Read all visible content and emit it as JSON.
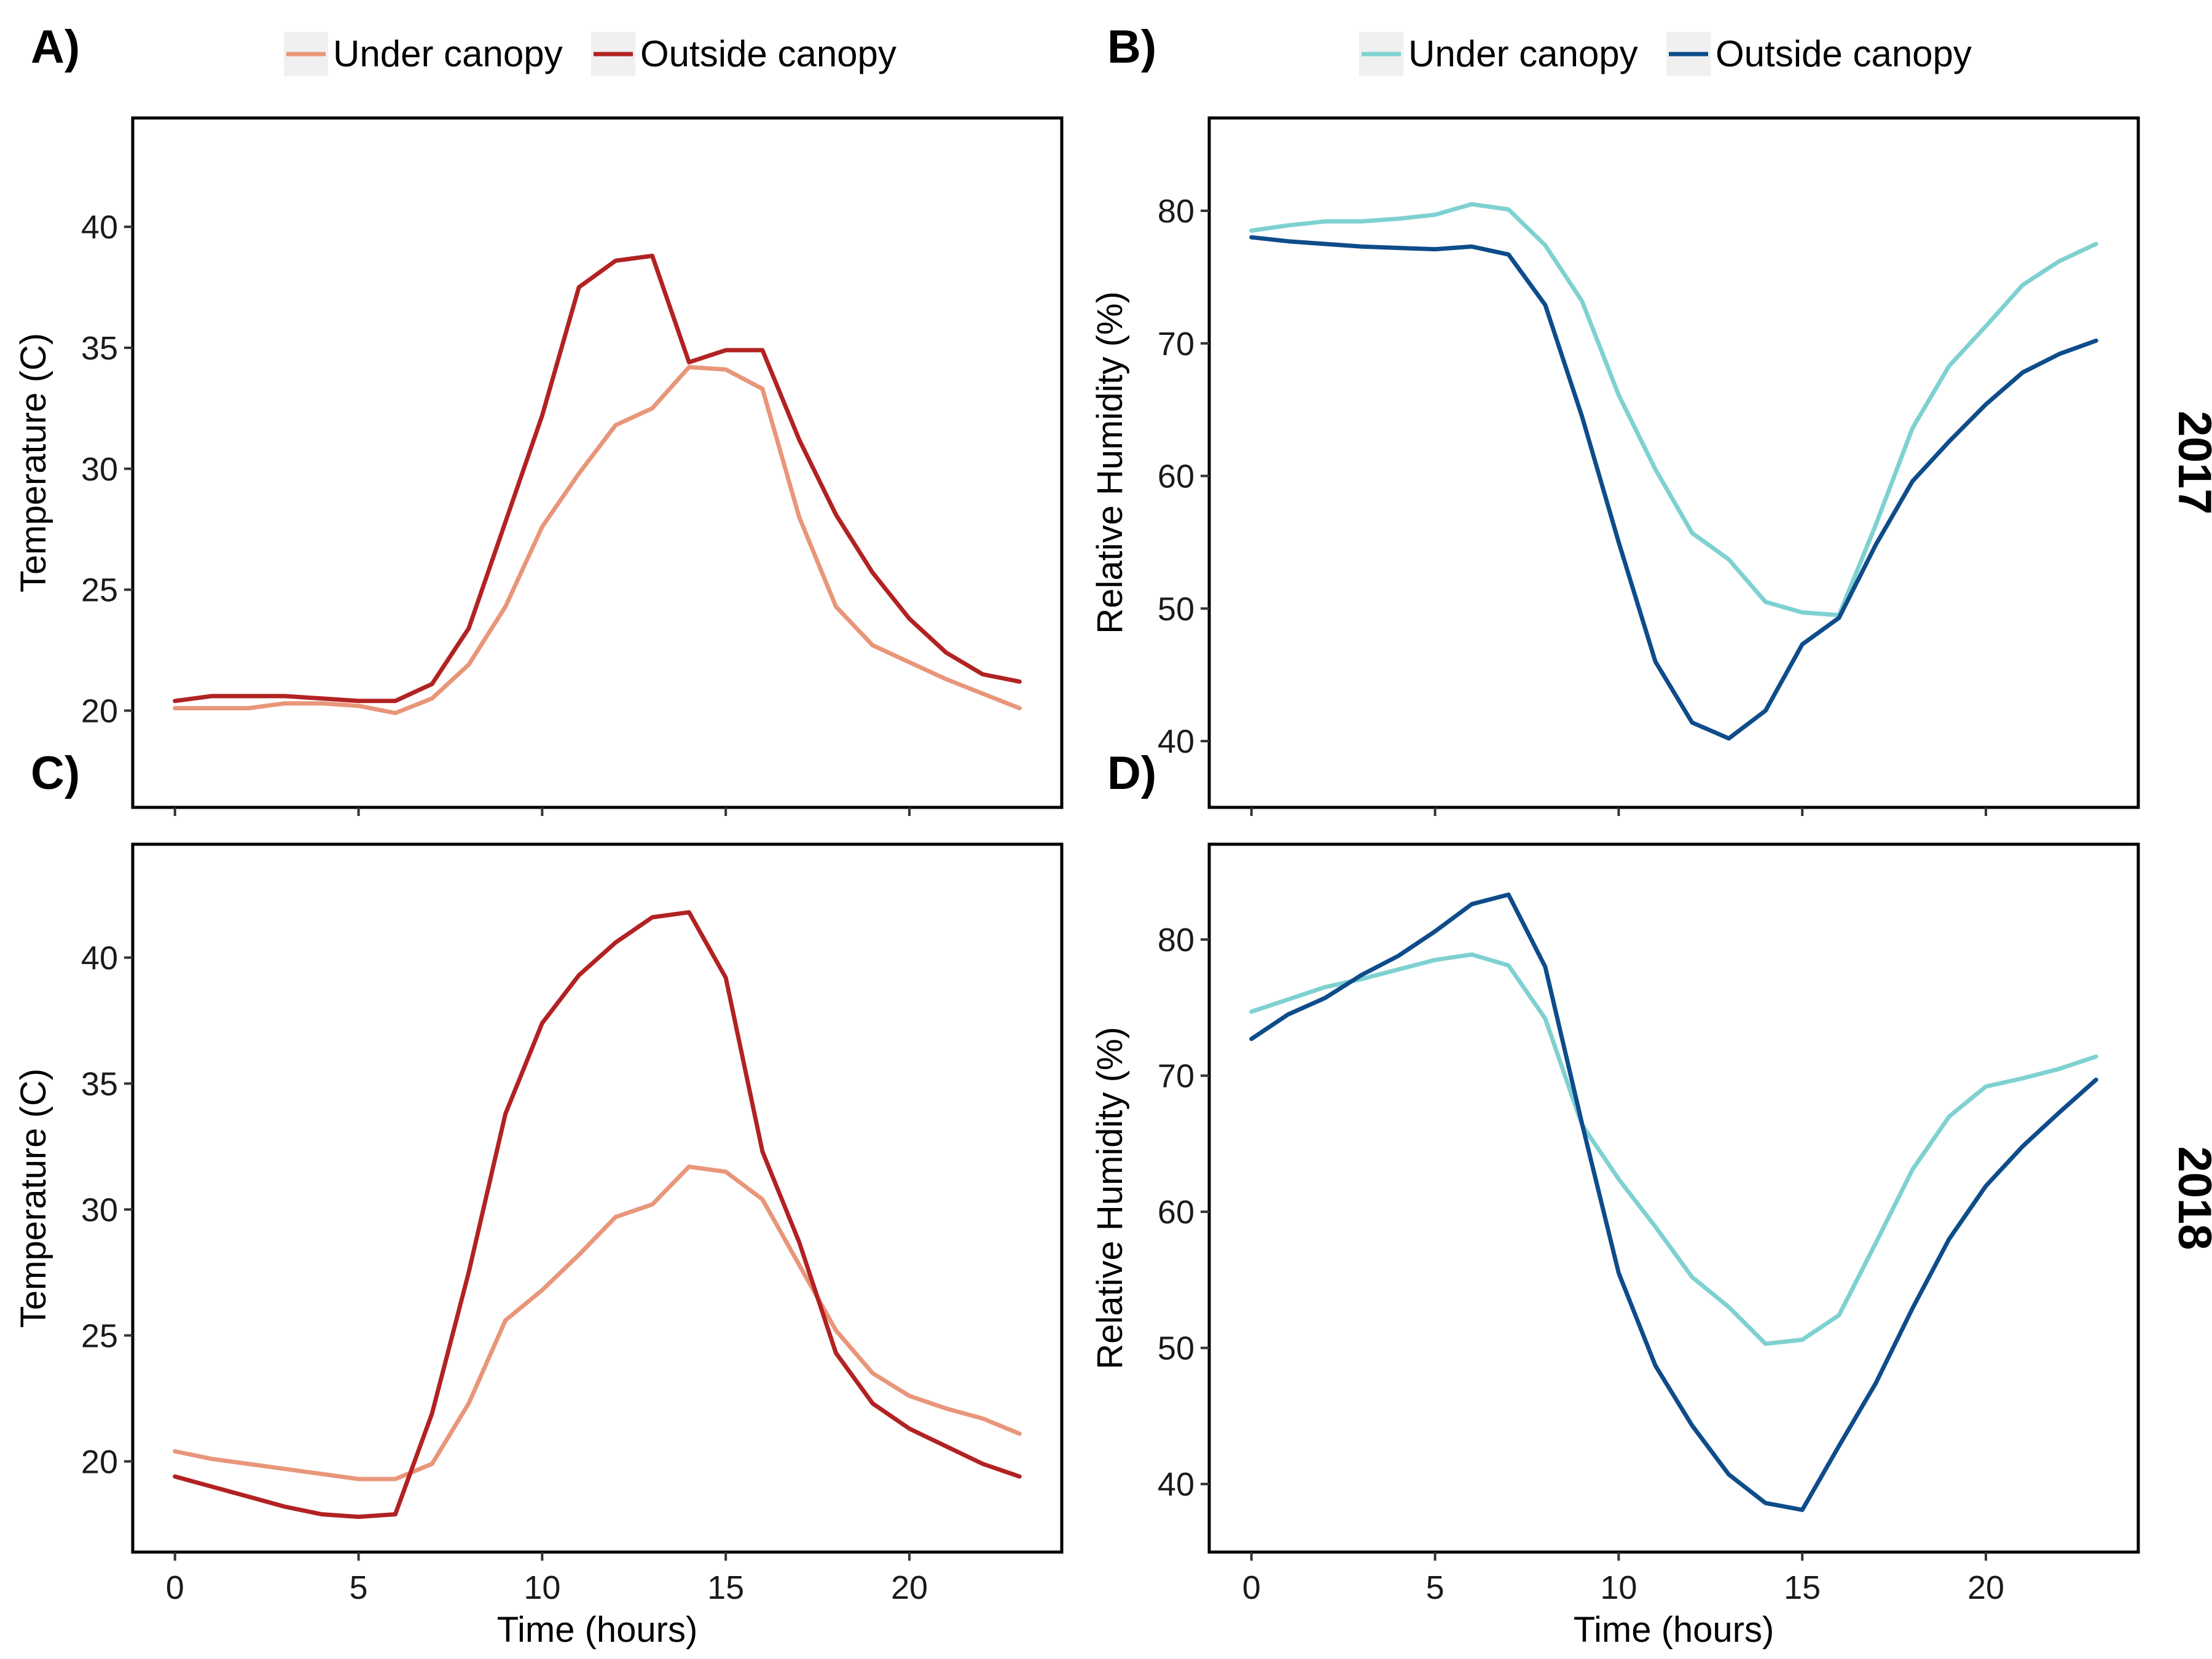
{
  "chart_data": [
    {
      "id": "A",
      "type": "line",
      "panel_label": "A)",
      "ylabel": "Temperature (C)",
      "xlabel": "",
      "xlim": [
        -1.15,
        24.15
      ],
      "ylim": [
        16,
        44.5
      ],
      "xticks": [
        0,
        5,
        10,
        15,
        20
      ],
      "yticks": [
        20,
        25,
        30,
        35,
        40
      ],
      "show_xtick_labels": false,
      "x": [
        0,
        1,
        2,
        3,
        4,
        5,
        6,
        7,
        8,
        9,
        10,
        11,
        12,
        13,
        14,
        15,
        16,
        17,
        18,
        19,
        20,
        21,
        22,
        23
      ],
      "series": [
        {
          "name": "Under canopy",
          "color": "#e8967a",
          "values": [
            20.1,
            20.1,
            20.1,
            20.3,
            20.3,
            20.2,
            19.9,
            20.5,
            21.9,
            24.3,
            27.6,
            29.8,
            31.8,
            32.5,
            34.2,
            34.1,
            33.3,
            28.0,
            24.3,
            22.7,
            22.0,
            21.3,
            20.7,
            20.1
          ]
        },
        {
          "name": "Outside canopy",
          "color": "#b22222",
          "values": [
            20.4,
            20.6,
            20.6,
            20.6,
            20.5,
            20.4,
            20.4,
            21.1,
            23.4,
            27.8,
            32.2,
            37.5,
            38.6,
            38.8,
            34.4,
            34.9,
            34.9,
            31.2,
            28.1,
            25.7,
            23.8,
            22.4,
            21.5,
            21.2
          ]
        }
      ]
    },
    {
      "id": "B",
      "type": "line",
      "panel_label": "B)",
      "ylabel": "Relative Humidity (%)",
      "xlabel": "",
      "xlim": [
        -1.15,
        24.15
      ],
      "ylim": [
        35,
        87
      ],
      "xticks": [
        0,
        5,
        10,
        15,
        20
      ],
      "yticks": [
        40,
        50,
        60,
        70,
        80
      ],
      "show_xtick_labels": false,
      "x": [
        0,
        1,
        2,
        3,
        4,
        5,
        6,
        7,
        8,
        9,
        10,
        11,
        12,
        13,
        14,
        15,
        16,
        17,
        18,
        19,
        20,
        21,
        22,
        23
      ],
      "series": [
        {
          "name": "Under canopy",
          "color": "#7fd1d1",
          "values": [
            78.5,
            78.9,
            79.2,
            79.2,
            79.4,
            79.7,
            80.5,
            80.1,
            77.4,
            73.2,
            66.1,
            60.5,
            55.7,
            53.7,
            50.5,
            49.7,
            49.5,
            56.3,
            63.6,
            68.3,
            71.3,
            74.4,
            76.2,
            77.5
          ]
        },
        {
          "name": "Outside canopy",
          "color": "#0e4c8a",
          "values": [
            78.0,
            77.7,
            77.5,
            77.3,
            77.2,
            77.1,
            77.3,
            76.7,
            72.9,
            64.5,
            55.0,
            46.0,
            41.4,
            40.2,
            42.3,
            47.3,
            49.3,
            54.8,
            59.6,
            62.6,
            65.4,
            67.8,
            69.2,
            70.2
          ]
        }
      ],
      "strip_label": "2017"
    },
    {
      "id": "C",
      "type": "line",
      "panel_label": "C)",
      "ylabel": "Temperature (C)",
      "xlabel": "Time (hours)",
      "xlim": [
        -1.15,
        24.15
      ],
      "ylim": [
        16.4,
        44.5
      ],
      "xticks": [
        0,
        5,
        10,
        15,
        20
      ],
      "yticks": [
        20,
        25,
        30,
        35,
        40
      ],
      "show_xtick_labels": true,
      "x": [
        0,
        1,
        2,
        3,
        4,
        5,
        6,
        7,
        8,
        9,
        10,
        11,
        12,
        13,
        14,
        15,
        16,
        17,
        18,
        19,
        20,
        21,
        22,
        23
      ],
      "series": [
        {
          "name": "Under canopy",
          "color": "#e8967a",
          "values": [
            20.4,
            20.1,
            19.9,
            19.7,
            19.5,
            19.3,
            19.3,
            19.9,
            22.3,
            25.6,
            26.8,
            28.2,
            29.7,
            30.2,
            31.7,
            31.5,
            30.4,
            27.8,
            25.2,
            23.5,
            22.6,
            22.1,
            21.7,
            21.1
          ]
        },
        {
          "name": "Outside canopy",
          "color": "#b22222",
          "values": [
            19.4,
            19.0,
            18.6,
            18.2,
            17.9,
            17.8,
            17.9,
            21.9,
            27.5,
            33.8,
            37.4,
            39.3,
            40.6,
            41.6,
            41.8,
            39.2,
            32.3,
            28.7,
            24.3,
            22.3,
            21.3,
            20.6,
            19.9,
            19.4
          ]
        }
      ]
    },
    {
      "id": "D",
      "type": "line",
      "panel_label": "D)",
      "ylabel": "Relative Humidity (%)",
      "xlabel": "Time (hours)",
      "xlim": [
        -1.15,
        24.15
      ],
      "ylim": [
        35,
        87
      ],
      "xticks": [
        0,
        5,
        10,
        15,
        20
      ],
      "yticks": [
        40,
        50,
        60,
        70,
        80
      ],
      "show_xtick_labels": true,
      "x": [
        0,
        1,
        2,
        3,
        4,
        5,
        6,
        7,
        8,
        9,
        10,
        11,
        12,
        13,
        14,
        15,
        16,
        17,
        18,
        19,
        20,
        21,
        22,
        23
      ],
      "series": [
        {
          "name": "Under canopy",
          "color": "#7fd1d1",
          "values": [
            74.7,
            75.6,
            76.5,
            77.1,
            77.8,
            78.5,
            78.9,
            78.1,
            74.2,
            66.4,
            62.4,
            58.9,
            55.2,
            53.0,
            50.3,
            50.6,
            52.4,
            57.7,
            63.1,
            67.0,
            69.2,
            69.8,
            70.5,
            71.4
          ]
        },
        {
          "name": "Outside canopy",
          "color": "#0e4c8a",
          "values": [
            72.7,
            74.5,
            75.7,
            77.4,
            78.8,
            80.6,
            82.6,
            83.3,
            78.0,
            66.5,
            55.5,
            48.7,
            44.3,
            40.7,
            38.6,
            38.1,
            42.8,
            47.4,
            52.9,
            58.0,
            61.9,
            64.8,
            67.3,
            69.7
          ]
        }
      ],
      "strip_label": "2018"
    }
  ],
  "legends": {
    "left": {
      "items": [
        {
          "label": "Under canopy",
          "color": "#e8967a"
        },
        {
          "label": "Outside canopy",
          "color": "#b22222"
        }
      ]
    },
    "right": {
      "items": [
        {
          "label": "Under canopy",
          "color": "#7fd1d1"
        },
        {
          "label": "Outside canopy",
          "color": "#0e4c8a"
        }
      ]
    }
  }
}
